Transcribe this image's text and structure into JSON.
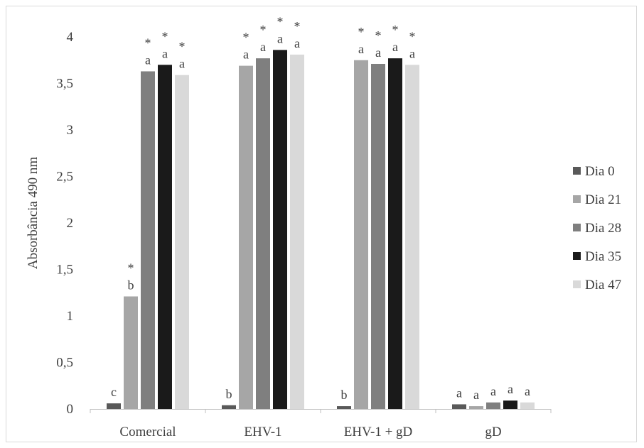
{
  "chart_data": {
    "type": "bar",
    "title": "",
    "xlabel": "",
    "ylabel": "Absorbância 490 nm",
    "ylim": [
      0,
      4
    ],
    "yticks": [
      "0",
      "0,5",
      "1",
      "1,5",
      "2",
      "2,5",
      "3",
      "3,5",
      "4"
    ],
    "categories": [
      "Comercial",
      "EHV-1",
      "EHV-1 + gD",
      "gD"
    ],
    "grid": false,
    "legend_position": "right",
    "series": [
      {
        "name": "Dia 0",
        "color": "#595959",
        "values": [
          0.06,
          0.04,
          0.03,
          0.05
        ],
        "labels": [
          "c",
          "b",
          "b",
          "a"
        ],
        "stars": [
          false,
          false,
          false,
          false
        ]
      },
      {
        "name": "Dia 21",
        "color": "#a6a6a6",
        "values": [
          1.21,
          3.69,
          3.75,
          0.03
        ],
        "labels": [
          "b",
          "a",
          "a",
          "a"
        ],
        "stars": [
          true,
          true,
          true,
          false
        ]
      },
      {
        "name": "Dia 28",
        "color": "#7f7f7f",
        "values": [
          3.63,
          3.77,
          3.71,
          0.07
        ],
        "labels": [
          "a",
          "a",
          "a",
          "a"
        ],
        "stars": [
          true,
          true,
          true,
          false
        ]
      },
      {
        "name": "Dia 35",
        "color": "#1a1a1a",
        "values": [
          3.7,
          3.86,
          3.77,
          0.09
        ],
        "labels": [
          "a",
          "a",
          "a",
          "a"
        ],
        "stars": [
          true,
          true,
          true,
          false
        ]
      },
      {
        "name": "Dia 47",
        "color": "#d9d9d9",
        "values": [
          3.59,
          3.81,
          3.7,
          0.07
        ],
        "labels": [
          "a",
          "a",
          "a",
          "a"
        ],
        "stars": [
          true,
          true,
          true,
          false
        ]
      }
    ],
    "star_symbol": "*"
  }
}
